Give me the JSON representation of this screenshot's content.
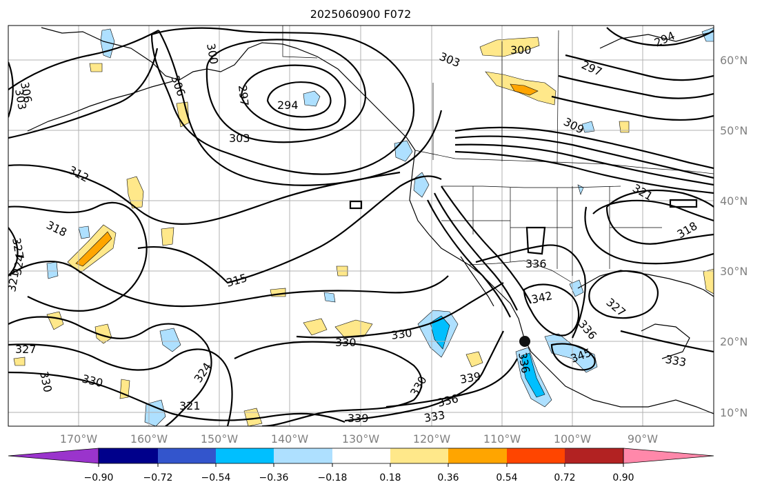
{
  "figure": {
    "title": "2025060900 F072"
  },
  "map": {
    "lat_labels": [
      "60°N",
      "50°N",
      "40°N",
      "30°N",
      "20°N",
      "10°N"
    ],
    "lon_labels": [
      "170°W",
      "160°W",
      "150°W",
      "140°W",
      "130°W",
      "120°W",
      "110°W",
      "100°W",
      "90°W"
    ],
    "contour_labels": [
      "300",
      "294",
      "297",
      "306",
      "303",
      "306",
      "303",
      "309",
      "312",
      "318",
      "327",
      "324",
      "321",
      "315",
      "330",
      "330",
      "327",
      "324",
      "321",
      "330",
      "339",
      "330",
      "333",
      "336",
      "339",
      "330",
      "336",
      "342",
      "336",
      "327",
      "345",
      "336",
      "333",
      "321",
      "318",
      "297",
      "294",
      "303"
    ],
    "marker": "center-dot"
  },
  "colorbar": {
    "ticks": [
      "−0.90",
      "−0.72",
      "−0.54",
      "−0.36",
      "−0.18",
      "0.18",
      "0.36",
      "0.54",
      "0.72",
      "0.90"
    ],
    "colors": [
      "#9a34cc",
      "#00008b",
      "#3355cc",
      "#00bfff",
      "#aee0ff",
      "#ffffff",
      "#ffe88a",
      "#ffa500",
      "#ff4500",
      "#b22222",
      "#ff88aa"
    ]
  }
}
